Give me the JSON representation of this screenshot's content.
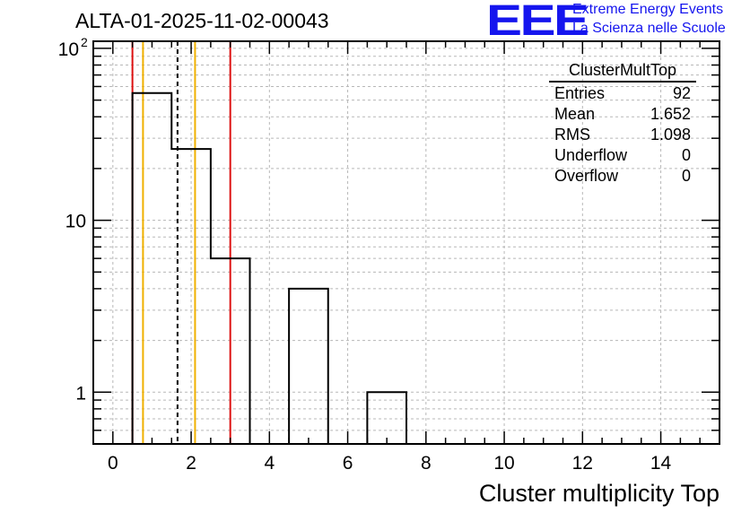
{
  "chart_data": {
    "type": "bar",
    "subtype": "histogram-step",
    "title": "ALTA-01-2025-11-02-00043",
    "xlabel": "Cluster multiplicity Top",
    "ylabel": "",
    "y_scale": "log",
    "xlim": [
      -0.5,
      15.5
    ],
    "ylim": [
      0.5,
      110
    ],
    "bin_width": 1,
    "bins": [
      {
        "x": 1,
        "value": 55
      },
      {
        "x": 2,
        "value": 26
      },
      {
        "x": 3,
        "value": 6
      },
      {
        "x": 4,
        "value": 0
      },
      {
        "x": 5,
        "value": 4
      },
      {
        "x": 6,
        "value": 0
      },
      {
        "x": 7,
        "value": 1
      }
    ],
    "x_ticks": [
      "0",
      "2",
      "4",
      "6",
      "8",
      "10",
      "12",
      "14"
    ],
    "x_tick_values": [
      0,
      2,
      4,
      6,
      8,
      10,
      12,
      14
    ],
    "y_ticks": [
      {
        "value": 1,
        "label": "1"
      },
      {
        "value": 10,
        "label": "10"
      },
      {
        "value": 100,
        "label": "10",
        "sup": "2"
      }
    ],
    "grid": true,
    "vertical_lines": [
      {
        "x": 0.5,
        "color": "#dd1111",
        "style": "solid"
      },
      {
        "x": 0.77,
        "color": "#f0b000",
        "style": "solid"
      },
      {
        "x": 1.652,
        "color": "#000000",
        "style": "dashed"
      },
      {
        "x": 2.1,
        "color": "#f0b000",
        "style": "solid"
      },
      {
        "x": 3.0,
        "color": "#dd1111",
        "style": "solid"
      }
    ],
    "stats_box": {
      "title": "ClusterMultTop",
      "rows": [
        {
          "label": "Entries",
          "value": "92"
        },
        {
          "label": "Mean",
          "value": "1.652"
        },
        {
          "label": "RMS",
          "value": "1.098"
        },
        {
          "label": "Underflow",
          "value": "0"
        },
        {
          "label": "Overflow",
          "value": "0"
        }
      ]
    }
  },
  "logo": {
    "mark": "EEE",
    "line1": "Extreme Energy Events",
    "line2": "La Scienza nelle Scuole"
  }
}
